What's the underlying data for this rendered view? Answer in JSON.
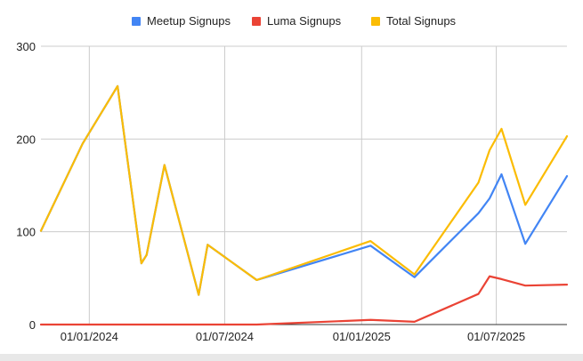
{
  "chart_data": {
    "type": "line",
    "title": "",
    "xlabel": "",
    "ylabel": "",
    "x_type": "date",
    "xlim": [
      "2023-10-28",
      "2025-10-04"
    ],
    "ylim": [
      0,
      300
    ],
    "y_ticks": [
      "0",
      "100",
      "200",
      "300"
    ],
    "x_ticks": [
      {
        "date": "2024-01-01",
        "label": "01/01/2024"
      },
      {
        "date": "2024-07-01",
        "label": "01/07/2024"
      },
      {
        "date": "2025-01-01",
        "label": "01/01/2025"
      },
      {
        "date": "2025-07-01",
        "label": "01/07/2025"
      }
    ],
    "grid": true,
    "legend_position": "top",
    "series": [
      {
        "name": "Meetup Signups",
        "color": "#4285f4",
        "points": [
          {
            "x": "2023-10-28",
            "y": 101
          },
          {
            "x": "2023-12-23",
            "y": 195
          },
          {
            "x": "2024-02-08",
            "y": 257
          },
          {
            "x": "2024-03-11",
            "y": 66
          },
          {
            "x": "2024-03-18",
            "y": 75
          },
          {
            "x": "2024-04-11",
            "y": 172
          },
          {
            "x": "2024-05-27",
            "y": 32
          },
          {
            "x": "2024-06-08",
            "y": 86
          },
          {
            "x": "2024-08-13",
            "y": 48
          },
          {
            "x": "2025-01-13",
            "y": 85
          },
          {
            "x": "2025-03-13",
            "y": 51
          },
          {
            "x": "2025-06-07",
            "y": 120
          },
          {
            "x": "2025-06-22",
            "y": 136
          },
          {
            "x": "2025-07-08",
            "y": 162
          },
          {
            "x": "2025-08-09",
            "y": 87
          },
          {
            "x": "2025-10-04",
            "y": 160
          }
        ]
      },
      {
        "name": "Luma Signups",
        "color": "#ea4335",
        "points": [
          {
            "x": "2023-10-28",
            "y": 0
          },
          {
            "x": "2024-08-13",
            "y": 0
          },
          {
            "x": "2025-01-13",
            "y": 5
          },
          {
            "x": "2025-03-13",
            "y": 3
          },
          {
            "x": "2025-06-07",
            "y": 33
          },
          {
            "x": "2025-06-22",
            "y": 52
          },
          {
            "x": "2025-07-08",
            "y": 49
          },
          {
            "x": "2025-08-09",
            "y": 42
          },
          {
            "x": "2025-10-04",
            "y": 43
          }
        ]
      },
      {
        "name": "Total Signups",
        "color": "#fbbc04",
        "points": [
          {
            "x": "2023-10-28",
            "y": 101
          },
          {
            "x": "2023-12-23",
            "y": 195
          },
          {
            "x": "2024-02-08",
            "y": 257
          },
          {
            "x": "2024-03-11",
            "y": 66
          },
          {
            "x": "2024-03-18",
            "y": 75
          },
          {
            "x": "2024-04-11",
            "y": 172
          },
          {
            "x": "2024-05-27",
            "y": 32
          },
          {
            "x": "2024-06-08",
            "y": 86
          },
          {
            "x": "2024-08-13",
            "y": 48
          },
          {
            "x": "2025-01-13",
            "y": 90
          },
          {
            "x": "2025-03-13",
            "y": 54
          },
          {
            "x": "2025-06-07",
            "y": 153
          },
          {
            "x": "2025-06-22",
            "y": 188
          },
          {
            "x": "2025-07-08",
            "y": 211
          },
          {
            "x": "2025-08-09",
            "y": 129
          },
          {
            "x": "2025-10-04",
            "y": 203
          }
        ]
      }
    ]
  }
}
